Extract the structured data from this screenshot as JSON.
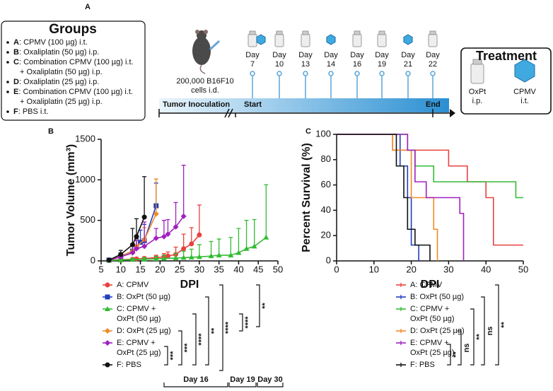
{
  "panel_labels": [
    "A",
    "B",
    "C"
  ],
  "groups": {
    "title": "Groups",
    "items": [
      {
        "letter": "A",
        "lines": [
          ": CPMV (100 µg) i.t."
        ]
      },
      {
        "letter": "B",
        "lines": [
          ": Oxaliplatin (50 µg) i.p."
        ]
      },
      {
        "letter": "C",
        "lines": [
          ": Combination CPMV (100 µg) i.t.",
          "+ Oxaliplatin (50 µg) i.p."
        ]
      },
      {
        "letter": "D",
        "lines": [
          ": Oxaliplatin (25 µg) i.p."
        ]
      },
      {
        "letter": "E",
        "lines": [
          ": Combination CPMV (100 µg) i.t.",
          "+ Oxaliplatin (25 µg) i.p."
        ]
      },
      {
        "letter": "F",
        "lines": [
          ": PBS i.t."
        ]
      }
    ]
  },
  "timeline": {
    "cells": [
      "200,000 B16F10",
      "cells i.d."
    ],
    "inoculation": "Tumor Inoculation",
    "start": "Start",
    "end": "End",
    "days": [
      {
        "word": "Day",
        "num": 7,
        "vial": true,
        "cpmv": true
      },
      {
        "word": "Day",
        "num": 10,
        "vial": true,
        "cpmv": false
      },
      {
        "word": "Day",
        "num": 13,
        "vial": true,
        "cpmv": false
      },
      {
        "word": "Day",
        "num": 14,
        "vial": false,
        "cpmv": true
      },
      {
        "word": "Day",
        "num": 16,
        "vial": true,
        "cpmv": false
      },
      {
        "word": "Day",
        "num": 19,
        "vial": true,
        "cpmv": false
      },
      {
        "word": "Day",
        "num": 21,
        "vial": false,
        "cpmv": true
      },
      {
        "word": "Day",
        "num": 22,
        "vial": true,
        "cpmv": false
      }
    ]
  },
  "treatment": {
    "title": "Treatment",
    "oxpt": [
      "OxPt",
      "i.p."
    ],
    "cpmv": [
      "CPMV",
      "i.t."
    ]
  },
  "chart_data": [
    {
      "type": "line",
      "xlabel": "DPI",
      "ylabel": "Tumor Volume (mm³)",
      "xlim": [
        5,
        50
      ],
      "ylim": [
        0,
        1500
      ],
      "xticks": [
        5,
        10,
        15,
        20,
        25,
        30,
        35,
        40,
        45,
        50
      ],
      "yticks": [
        0,
        500,
        1000,
        1500
      ],
      "series": [
        {
          "name": "A: CPMV",
          "color": "#e8423f",
          "marker": "circle",
          "x": [
            7,
            10,
            13,
            14,
            16,
            19,
            21,
            22,
            24,
            26,
            28,
            30
          ],
          "values": [
            10,
            15,
            20,
            25,
            30,
            40,
            50,
            60,
            80,
            150,
            210,
            320
          ],
          "errors": [
            5,
            10,
            15,
            15,
            20,
            30,
            40,
            50,
            90,
            180,
            200,
            370
          ]
        },
        {
          "name": "B: OxPt (50 µg)",
          "color": "#1f3fbf",
          "marker": "square",
          "x": [
            7,
            10,
            13,
            14,
            15,
            16,
            19
          ],
          "values": [
            10,
            60,
            120,
            170,
            230,
            250,
            680
          ],
          "errors": [
            10,
            40,
            80,
            100,
            150,
            200,
            280
          ]
        },
        {
          "name": "C: CPMV +\nOxPt (50 µg)",
          "color": "#33bb33",
          "marker": "triangle",
          "x": [
            7,
            10,
            13,
            16,
            19,
            21,
            24,
            26,
            28,
            30,
            33,
            35,
            38,
            40,
            42,
            44,
            47
          ],
          "values": [
            5,
            10,
            15,
            20,
            25,
            30,
            35,
            40,
            45,
            50,
            60,
            70,
            70,
            100,
            150,
            180,
            290
          ],
          "errors": [
            5,
            10,
            15,
            20,
            30,
            40,
            60,
            80,
            100,
            150,
            180,
            200,
            220,
            300,
            350,
            330,
            650
          ]
        },
        {
          "name": "D: OxPt (25 µg)",
          "color": "#f08a24",
          "marker": "diamond",
          "x": [
            7,
            10,
            13,
            14,
            16,
            19
          ],
          "values": [
            10,
            60,
            120,
            180,
            260,
            580
          ],
          "errors": [
            10,
            40,
            80,
            100,
            150,
            430
          ]
        },
        {
          "name": "E: CPMV +\nOxPt (25 µg)",
          "color": "#a020c0",
          "marker": "diamond",
          "x": [
            7,
            10,
            13,
            14,
            16,
            19,
            21,
            22,
            24,
            26
          ],
          "values": [
            10,
            50,
            100,
            150,
            180,
            280,
            300,
            330,
            420,
            550
          ],
          "errors": [
            10,
            40,
            80,
            100,
            300,
            120,
            200,
            180,
            300,
            630
          ]
        },
        {
          "name": "F: PBS",
          "color": "#111111",
          "marker": "circle",
          "x": [
            7,
            10,
            13,
            14,
            16
          ],
          "values": [
            10,
            80,
            200,
            300,
            540
          ],
          "errors": [
            10,
            50,
            200,
            220,
            500
          ]
        }
      ],
      "significance": [
        "***",
        "***",
        "****",
        "**",
        "****",
        "****",
        "**"
      ],
      "day_labels": [
        "Day 16",
        "Day 19",
        "Day 30"
      ]
    },
    {
      "type": "step",
      "xlabel": "DPI",
      "ylabel": "Percent Survival (%)",
      "xlim": [
        0,
        50
      ],
      "ylim": [
        0,
        100
      ],
      "xticks": [
        0,
        10,
        20,
        30,
        40,
        50
      ],
      "yticks": [
        0,
        20,
        40,
        60,
        80,
        100
      ],
      "series": [
        {
          "name": "A: CPMV",
          "color": "#e8423f",
          "x": [
            0,
            15,
            30,
            35,
            40,
            42,
            50
          ],
          "values": [
            100,
            87.5,
            75,
            62.5,
            50,
            12.5,
            12.5
          ]
        },
        {
          "name": "B: OxPt (50 µg)",
          "color": "#1f3fbf",
          "x": [
            0,
            17,
            19,
            20,
            22
          ],
          "values": [
            100,
            75,
            50,
            12.5,
            0
          ]
        },
        {
          "name": "C: CPMV +\nOxPt (50 µg)",
          "color": "#33bb33",
          "x": [
            0,
            19,
            21,
            26,
            48,
            50
          ],
          "values": [
            100,
            87.5,
            75,
            62.5,
            50,
            50
          ]
        },
        {
          "name": "D: OxPt (25 µg)",
          "color": "#f08a24",
          "x": [
            0,
            15,
            20,
            26,
            27
          ],
          "values": [
            100,
            87.5,
            50,
            25,
            0
          ]
        },
        {
          "name": "E: CPMV +\nOxPt (25 µg)",
          "color": "#a020c0",
          "x": [
            0,
            19,
            21,
            24,
            33,
            34
          ],
          "values": [
            100,
            87.5,
            62.5,
            50,
            37.5,
            0
          ]
        },
        {
          "name": "F: PBS",
          "color": "#111111",
          "x": [
            0,
            16,
            18,
            19,
            21,
            25
          ],
          "values": [
            100,
            75,
            50,
            25,
            12.5,
            0
          ]
        }
      ],
      "significance": [
        "**",
        "ns",
        "**",
        "ns",
        "**"
      ]
    }
  ]
}
